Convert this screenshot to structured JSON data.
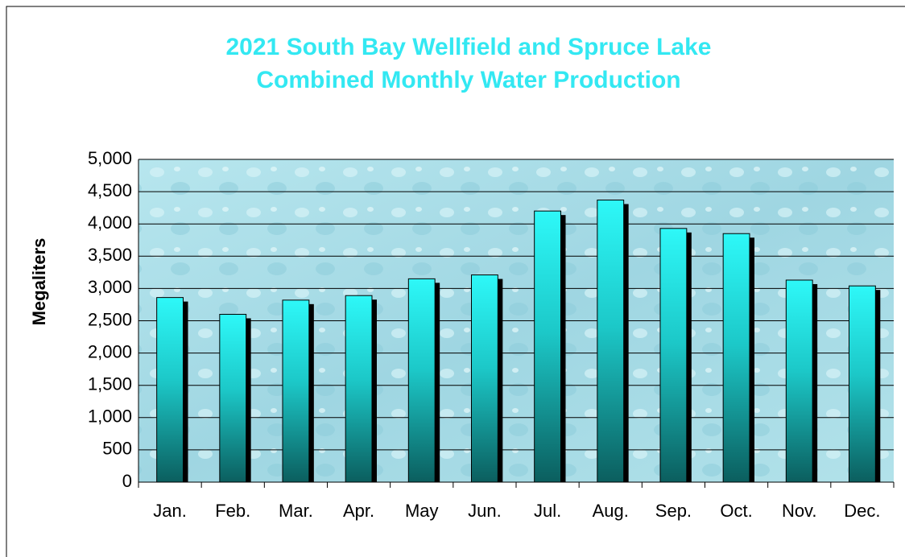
{
  "chart_data": {
    "type": "bar",
    "title": [
      "2021 South Bay Wellfield and Spruce Lake",
      "Combined Monthly Water Production"
    ],
    "y_label": "Megaliters",
    "categories": [
      "Jan.",
      "Feb.",
      "Mar.",
      "Apr.",
      "May",
      "Jun.",
      "Jul.",
      "Aug.",
      "Sep.",
      "Oct.",
      "Nov.",
      "Dec."
    ],
    "values": [
      2860,
      2600,
      2820,
      2890,
      3150,
      3210,
      4200,
      4370,
      3930,
      3850,
      3130,
      3040
    ],
    "color": "#2ef5f5",
    "ylim": [
      0,
      5000
    ],
    "yticks": [
      0,
      500,
      {
        "value": 1000,
        "label": "1,000"
      },
      {
        "value": 1500,
        "label": "1,500"
      },
      {
        "value": 2000,
        "label": "2,000"
      },
      {
        "value": 2500,
        "label": "2,500"
      },
      {
        "value": 3000,
        "label": "3,000"
      },
      {
        "value": 3500,
        "label": "3,500"
      },
      {
        "value": 4000,
        "label": "4,000"
      },
      {
        "value": 4500,
        "label": "4,500"
      },
      {
        "value": 5000,
        "label": "5,000"
      }
    ],
    "grid": true
  }
}
